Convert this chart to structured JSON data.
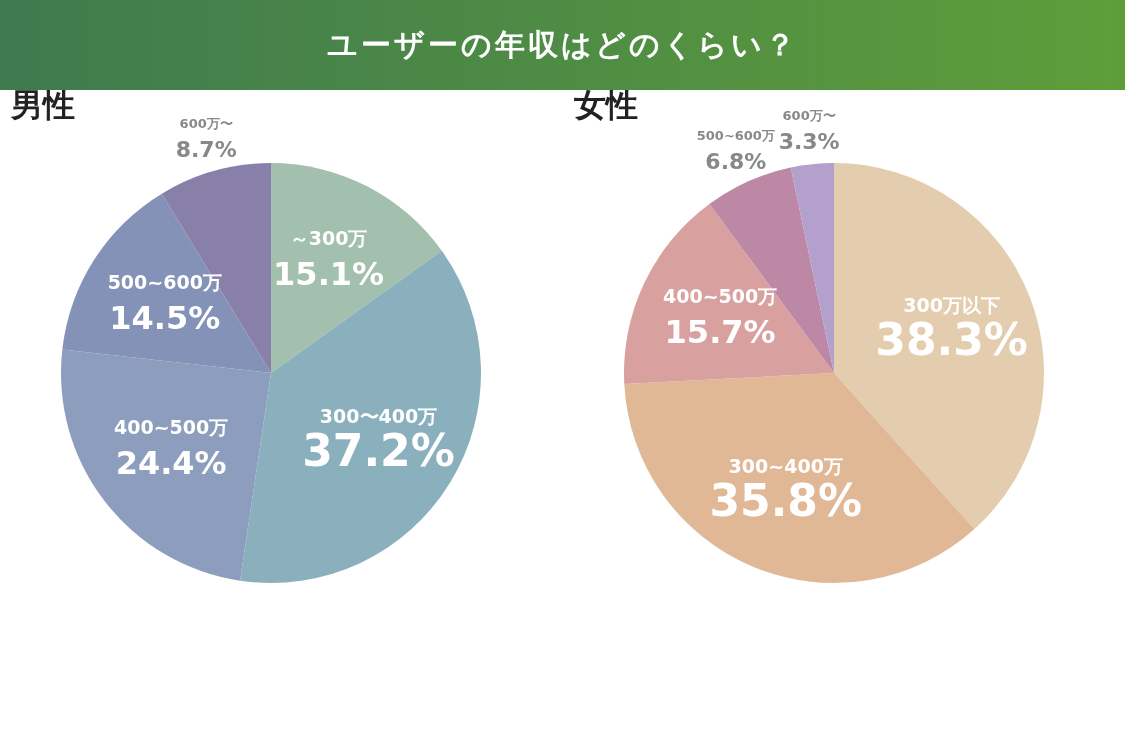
{
  "chart_data": [
    {
      "type": "pie",
      "title": "ユーザーの年収はどのくらい？",
      "subtitle": "男性",
      "categories": [
        "～300万",
        "300〜400万",
        "400~500万",
        "500~600万",
        "600万〜"
      ],
      "values": [
        15.1,
        37.2,
        24.4,
        14.5,
        8.7
      ],
      "value_labels": [
        "15.1%",
        "37.2%",
        "24.4%",
        "14.5%",
        "8.7%"
      ],
      "colors": [
        "#a3bfae",
        "#8bb0bd",
        "#8d9dbd",
        "#8592b8",
        "#8880a8"
      ],
      "data_labels": true
    },
    {
      "type": "pie",
      "subtitle": "女性",
      "categories": [
        "300万以下",
        "300~400万",
        "400~500万",
        "500~600万",
        "600万〜"
      ],
      "values": [
        38.3,
        35.8,
        15.7,
        6.8,
        3.3
      ],
      "value_labels": [
        "38.3%",
        "35.8%",
        "15.7%",
        "6.8%",
        "3.3%"
      ],
      "colors": [
        "#e3cdae",
        "#e0b895",
        "#d9a0a0",
        "#bc88a5",
        "#b3a0cc"
      ],
      "data_labels": true
    }
  ]
}
